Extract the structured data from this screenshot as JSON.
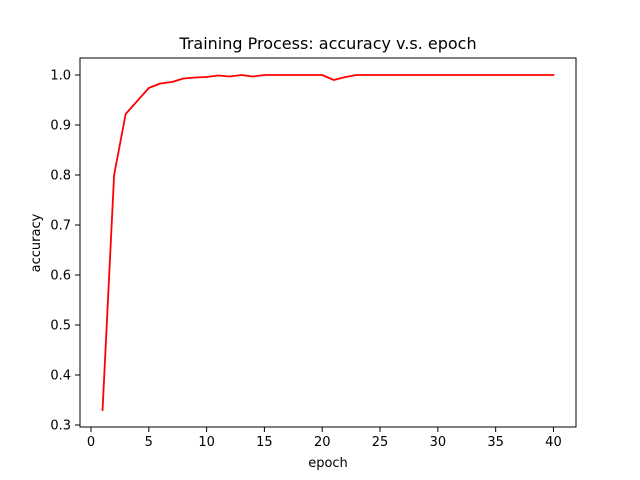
{
  "chart_data": {
    "type": "line",
    "title": "Training Process: accuracy v.s. epoch",
    "xlabel": "epoch",
    "ylabel": "accuracy",
    "xlim": [
      -0.95,
      41.95
    ],
    "ylim": [
      0.296,
      1.034
    ],
    "grid": false,
    "legend": "none",
    "xticks": [
      0,
      5,
      10,
      15,
      20,
      25,
      30,
      35,
      40
    ],
    "xtick_labels": [
      "0",
      "5",
      "10",
      "15",
      "20",
      "25",
      "30",
      "35",
      "40"
    ],
    "yticks": [
      0.3,
      0.4,
      0.5,
      0.6,
      0.7,
      0.8,
      0.9,
      1.0
    ],
    "ytick_labels": [
      "0.3",
      "0.4",
      "0.5",
      "0.6",
      "0.7",
      "0.8",
      "0.9",
      "1.0"
    ],
    "series": [
      {
        "color": "#ff0000",
        "x": [
          1,
          2,
          3,
          4,
          5,
          6,
          7,
          8,
          9,
          10,
          11,
          12,
          13,
          14,
          15,
          16,
          17,
          18,
          19,
          20,
          21,
          22,
          23,
          24,
          25,
          26,
          27,
          28,
          29,
          30,
          31,
          32,
          33,
          34,
          35,
          36,
          37,
          38,
          39,
          40
        ],
        "y": [
          0.33,
          0.8,
          0.922,
          0.948,
          0.974,
          0.983,
          0.986,
          0.993,
          0.995,
          0.996,
          0.999,
          0.997,
          1.0,
          0.997,
          1.0,
          1.0,
          1.0,
          1.0,
          1.0,
          1.0,
          0.99,
          0.996,
          1.0,
          1.0,
          1.0,
          1.0,
          1.0,
          1.0,
          1.0,
          1.0,
          1.0,
          1.0,
          1.0,
          1.0,
          1.0,
          1.0,
          1.0,
          1.0,
          1.0,
          1.0
        ]
      }
    ]
  }
}
